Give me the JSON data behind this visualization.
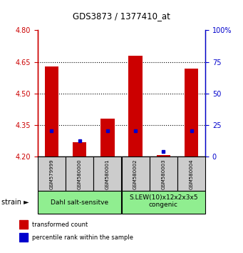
{
  "title": "GDS3873 / 1377410_at",
  "samples": [
    "GSM579999",
    "GSM580000",
    "GSM580001",
    "GSM580002",
    "GSM580003",
    "GSM580004"
  ],
  "red_values": [
    4.63,
    4.27,
    4.38,
    4.68,
    4.21,
    4.62
  ],
  "blue_values": [
    4.325,
    4.275,
    4.325,
    4.325,
    4.225,
    4.325
  ],
  "ylim_left": [
    4.2,
    4.8
  ],
  "ylim_right": [
    0,
    100
  ],
  "yticks_left": [
    4.2,
    4.35,
    4.5,
    4.65,
    4.8
  ],
  "yticks_right": [
    0,
    25,
    50,
    75,
    100
  ],
  "ytick_right_labels": [
    "0",
    "25",
    "50",
    "75",
    "100%"
  ],
  "bar_bottom": 4.2,
  "bar_width": 0.5,
  "groups": [
    {
      "label": "Dahl salt-sensitve",
      "span": [
        0,
        3
      ]
    },
    {
      "label": "S.LEW(10)x12x2x3x5\ncongenic",
      "span": [
        3,
        6
      ]
    }
  ],
  "group_bg_color": "#90EE90",
  "tick_label_area_color": "#cccccc",
  "red_color": "#cc0000",
  "blue_color": "#0000cc",
  "legend_red_label": "transformed count",
  "legend_blue_label": "percentile rank within the sample",
  "dotted_grid_levels": [
    4.35,
    4.5,
    4.65
  ],
  "ylabel_left_color": "#cc0000",
  "ylabel_right_color": "#0000cc",
  "fig_width": 3.41,
  "fig_height": 3.54,
  "dpi": 100
}
